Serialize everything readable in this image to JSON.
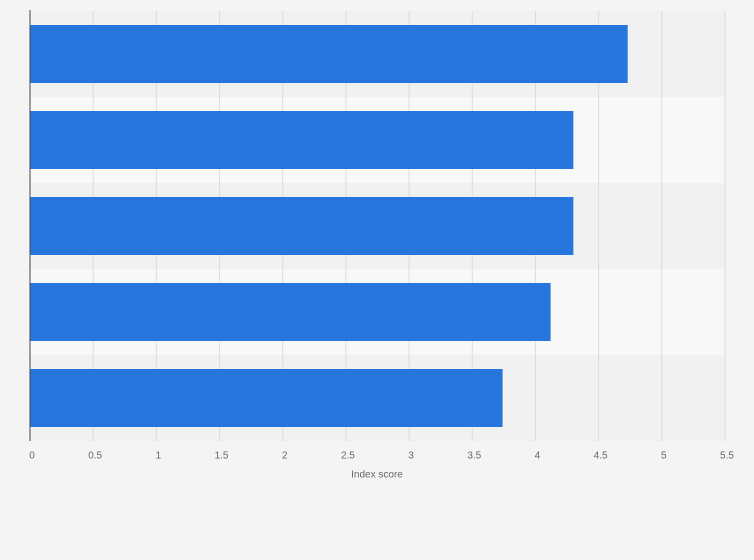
{
  "chart_data": {
    "type": "hbar",
    "x_label": "Index score",
    "categories": [
      null,
      null,
      null,
      null,
      null
    ],
    "values": [
      4.73,
      4.3,
      4.3,
      4.12,
      3.74
    ],
    "color": "#2776dd",
    "xlim": [
      0,
      5.5
    ],
    "xticks": [
      0,
      0.5,
      1,
      1.5,
      2,
      2.5,
      3,
      3.5,
      4,
      4.5,
      5,
      5.5
    ],
    "grid": true
  }
}
